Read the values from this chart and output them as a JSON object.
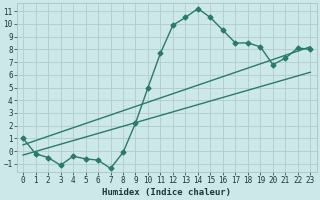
{
  "xlabel": "Humidex (Indice chaleur)",
  "background_color": "#cce8e8",
  "grid_color": "#b0cccc",
  "line_color": "#2a7a6a",
  "xlim": [
    -0.5,
    23.5
  ],
  "ylim": [
    -1.6,
    11.6
  ],
  "xticks": [
    0,
    1,
    2,
    3,
    4,
    5,
    6,
    7,
    8,
    9,
    10,
    11,
    12,
    13,
    14,
    15,
    16,
    17,
    18,
    19,
    20,
    21,
    22,
    23
  ],
  "yticks": [
    -1,
    0,
    1,
    2,
    3,
    4,
    5,
    6,
    7,
    8,
    9,
    10,
    11
  ],
  "line1_x": [
    0,
    1,
    2,
    3,
    4,
    5,
    6,
    7,
    8,
    9,
    10,
    11,
    12,
    13,
    14,
    15,
    16,
    17,
    18,
    19,
    20,
    21,
    22,
    23
  ],
  "line1_y": [
    1.0,
    -0.2,
    -0.5,
    -1.1,
    -0.4,
    -0.6,
    -0.7,
    -1.35,
    -0.1,
    2.2,
    5.0,
    7.7,
    9.9,
    10.5,
    11.2,
    10.5,
    9.5,
    8.5,
    8.5,
    8.2,
    6.8,
    7.3,
    8.1,
    8.0
  ],
  "line2_x": [
    0,
    23
  ],
  "line2_y": [
    0.5,
    8.2
  ],
  "line3_x": [
    0,
    23
  ],
  "line3_y": [
    -0.3,
    6.2
  ],
  "marker": "D",
  "markersize": 2.5,
  "linewidth": 1.0,
  "tick_fontsize": 5.5,
  "xlabel_fontsize": 6.5
}
